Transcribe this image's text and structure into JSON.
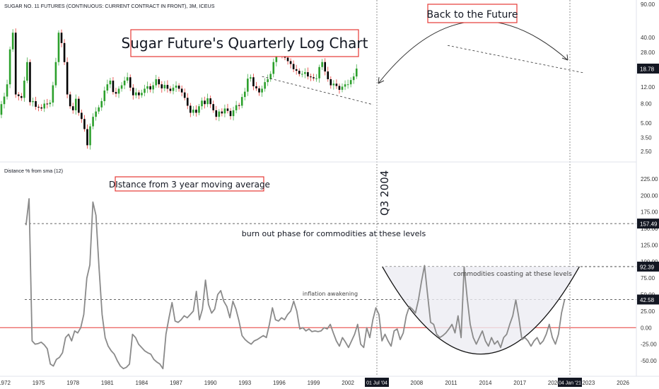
{
  "colors": {
    "up": "#2ca02c",
    "down": "#000000",
    "wick_up": "#4caf50",
    "wick_down": "#e53935",
    "line": "#8a8a8a",
    "zero_line": "#e53935",
    "highlight_box": "#e53935",
    "badge": "#131722"
  },
  "header": {
    "instrument": "SUGAR NO. 11 FUTURES (CONTINUOUS: CURRENT CONTRACT IN FRONT), 3M, ICEUS"
  },
  "chart_data": [
    {
      "type": "candlestick",
      "title": "Sugar Future's Quarterly Log Chart",
      "scale": "log",
      "y_ticks": [
        "90.00",
        "40.00",
        "28.00",
        "18.00",
        "12.00",
        "8.00",
        "5.00",
        "3.50",
        "2.50"
      ],
      "y_tick_values": [
        90,
        40,
        28,
        18,
        12,
        8,
        5,
        3.5,
        2.5
      ],
      "last_price_label": "18.78",
      "last_price": 18.78,
      "annotations": {
        "arc_label": "Back to the Future",
        "vertical_label": "Q3 2004"
      },
      "closes": [
        6.1,
        7.9,
        9.5,
        12.8,
        30,
        45,
        10,
        9.6,
        9.2,
        14,
        22,
        8.3,
        8.5,
        7.4,
        7.3,
        7.1,
        8.0,
        7.9,
        8.2,
        12.5,
        22,
        45,
        35,
        22,
        10,
        7.5,
        6.8,
        9,
        6.4,
        5.5,
        4.3,
        2.9,
        4.6,
        5.8,
        6.6,
        7.3,
        8.5,
        11,
        12.8,
        14,
        10.6,
        10.2,
        11.5,
        12.5,
        14,
        15.2,
        11.8,
        9.8,
        10.5,
        9.8,
        10.4,
        11.5,
        12.2,
        11.3,
        12.5,
        14.5,
        12.8,
        11.6,
        12.6,
        11.5,
        10.9,
        11.8,
        12.4,
        11.5,
        10.5,
        9.2,
        7.6,
        6.4,
        6.9,
        6.4,
        7.5,
        8.6,
        7.9,
        9.1,
        7.9,
        6.8,
        5.8,
        6.6,
        6.3,
        7.1,
        6.7,
        5.9,
        6.8,
        7.7,
        7.6,
        9.4,
        10.7,
        14.7,
        15.2,
        12.2,
        11.6,
        10.5,
        11.5,
        13.5,
        14.5,
        16.5,
        22,
        27.5,
        30,
        26.5,
        24.5,
        22.5,
        21,
        18.5,
        17.8,
        16.5,
        16.5,
        17.2,
        15.5,
        15.2,
        14.8,
        14.8,
        19.5,
        22,
        17.5,
        14.5,
        12.5,
        13,
        12.3,
        11.2,
        12.1,
        12.8,
        12.8,
        14.2,
        15.5,
        18.78
      ],
      "oscillator": {
        "title": "Distance % from sma (12)",
        "label_box": "DIstance from 3 year moving average",
        "y_ticks": [
          "225.00",
          "200.00",
          "175.00",
          "150.00",
          "125.00",
          "100.00",
          "75.00",
          "50.00",
          "25.00",
          "0.00",
          "-25.00",
          "-50.00"
        ],
        "y_tick_values": [
          225,
          200,
          175,
          150,
          125,
          100,
          75,
          50,
          25,
          0,
          -25,
          -50
        ],
        "levels": [
          {
            "value": 157.49,
            "label": "157.49",
            "text": "burn out phase for commodities at these levels"
          },
          {
            "value": 92.39,
            "label": "92.39",
            "text": "commodities coasting at these levels"
          },
          {
            "value": 42.58,
            "label": "42.58",
            "text": "inflation awakening"
          }
        ],
        "values": [
          155,
          195,
          -20,
          -25,
          -24,
          -22,
          -26,
          -32,
          -55,
          -58,
          -48,
          -45,
          -38,
          -15,
          -10,
          -20,
          -5,
          -8,
          0,
          20,
          75,
          95,
          190,
          170,
          90,
          20,
          -15,
          -28,
          -35,
          -40,
          -50,
          -58,
          -62,
          -60,
          -55,
          -10,
          -15,
          -25,
          -30,
          -35,
          -38,
          -40,
          -48,
          -52,
          -55,
          -62,
          -10,
          15,
          38,
          10,
          8,
          12,
          18,
          15,
          20,
          25,
          55,
          12,
          28,
          72,
          35,
          22,
          28,
          50,
          56,
          40,
          32,
          15,
          40,
          28,
          10,
          -12,
          -18,
          -22,
          -25,
          -20,
          -18,
          -15,
          -12,
          -15,
          5,
          30,
          12,
          10,
          15,
          12,
          20,
          25,
          40,
          25,
          -2,
          0,
          -5,
          -2,
          -6,
          -5,
          -6,
          -5,
          0,
          -2,
          5,
          -8,
          -20,
          -28,
          -15,
          -22,
          -30,
          -20,
          -10,
          5,
          -25,
          -30,
          0,
          -15,
          12,
          30,
          20,
          -20,
          -10,
          -20,
          -28,
          -5,
          -2,
          -18,
          -8,
          18,
          32,
          28,
          22,
          42,
          70,
          94,
          50,
          8,
          5,
          -10,
          -15,
          -12,
          -8,
          -2,
          5,
          -8,
          18,
          -15,
          92,
          45,
          5,
          -15,
          -25,
          -15,
          -5,
          -20,
          -28,
          -15,
          -25,
          -20,
          -30,
          -15,
          -10,
          5,
          18,
          42,
          15,
          -18,
          -15,
          -20,
          -28,
          -20,
          -15,
          -25,
          -20,
          -10,
          5,
          -15,
          -25,
          -10,
          22,
          42
        ]
      },
      "x_ticks": [
        "1972",
        "1975",
        "1978",
        "1981",
        "1984",
        "1987",
        "1990",
        "1993",
        "1996",
        "1999",
        "2002",
        "2005",
        "2008",
        "2011",
        "2014",
        "2017",
        "2020",
        "2023",
        "2026"
      ],
      "x_badges": [
        "01 Jul '04",
        "04 Jan '21"
      ]
    }
  ]
}
